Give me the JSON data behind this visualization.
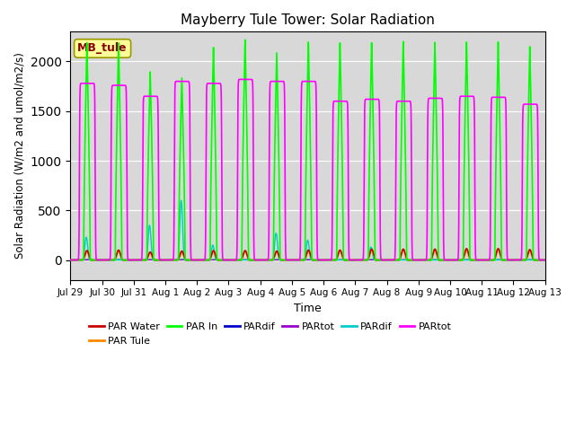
{
  "title": "Mayberry Tule Tower: Solar Radiation",
  "ylabel": "Solar Radiation (W/m2 and umol/m2/s)",
  "xlabel": "Time",
  "ylim": [
    -200,
    2300
  ],
  "bg_color": "#d8d8d8",
  "annotation_text": "MB_tule",
  "annotation_color": "#8B0000",
  "annotation_bg": "#FFFF99",
  "tick_labels": [
    "Jul 29",
    "Jul 30",
    "Jul 31",
    "Aug 1",
    "Aug 2",
    "Aug 3",
    "Aug 4",
    "Aug 5",
    "Aug 6",
    "Aug 7",
    "Aug 8",
    "Aug 9",
    "Aug 10",
    "Aug 11",
    "Aug 12",
    "Aug 13"
  ],
  "tick_positions": [
    0,
    24,
    48,
    72,
    96,
    120,
    144,
    168,
    192,
    216,
    240,
    264,
    288,
    312,
    336,
    360
  ],
  "colors": {
    "par_water": "#cc0000",
    "par_tule": "#ff8800",
    "par_in": "#00ff00",
    "pardif_blue": "#0000cc",
    "partot_purple": "#9900cc",
    "pardif_cyan": "#00cccc",
    "partot_magenta": "#ff00ff"
  },
  "legend_entries": [
    {
      "label": "PAR Water",
      "color": "#cc0000"
    },
    {
      "label": "PAR Tule",
      "color": "#ff8800"
    },
    {
      "label": "PAR In",
      "color": "#00ff00"
    },
    {
      "label": "PARdif",
      "color": "#0000cc"
    },
    {
      "label": "PARtot",
      "color": "#9900cc"
    },
    {
      "label": "PARdif",
      "color": "#00cccc"
    },
    {
      "label": "PARtot",
      "color": "#ff00ff"
    }
  ],
  "par_in_peaks": [
    2190,
    2190,
    1900,
    1840,
    2150,
    2230,
    2100,
    2210,
    2200,
    2200,
    2210,
    2200,
    2200,
    2200,
    2150
  ],
  "par_water_peaks": [
    95,
    100,
    80,
    90,
    95,
    95,
    90,
    100,
    100,
    110,
    110,
    110,
    115,
    115,
    105
  ],
  "par_tule_peaks": [
    90,
    95,
    70,
    75,
    85,
    88,
    85,
    90,
    95,
    100,
    100,
    100,
    100,
    105,
    95
  ],
  "pardif_cyan_peaks": [
    230,
    0,
    350,
    600,
    150,
    0,
    270,
    200,
    0,
    130,
    0,
    0,
    0,
    0,
    0
  ],
  "partot_magenta_peaks": [
    1780,
    1760,
    1650,
    1800,
    1780,
    1820,
    1800,
    1800,
    1600,
    1620,
    1600,
    1630,
    1650,
    1640,
    1570
  ],
  "par_in_widths": [
    5,
    5,
    8,
    8,
    5,
    5,
    7,
    5,
    5,
    5,
    5,
    5,
    5,
    5,
    5
  ],
  "partot_mag_flat": [
    true,
    true,
    false,
    true,
    true,
    true,
    true,
    true,
    true,
    true,
    true,
    true,
    true,
    true,
    true
  ]
}
